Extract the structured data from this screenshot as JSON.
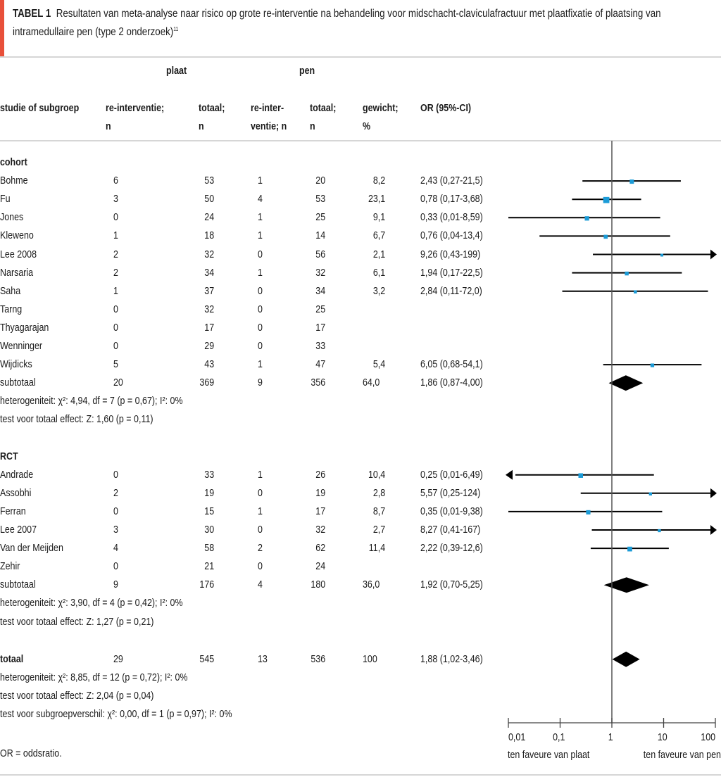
{
  "caption": {
    "label": "TABEL 1",
    "text": "Resultaten van meta-analyse naar risico op grote re-interventie na behandeling voor midschacht-claviculafractuur met plaatfixatie of plaatsing van intramedullaire pen (type 2 onderzoek)",
    "ref": "11"
  },
  "header": {
    "group_plaat": "plaat",
    "group_pen": "pen",
    "col_study": "studie of subgroep",
    "col_plaat_events_1": "re-interventie;",
    "col_plaat_events_2": "n",
    "col_plaat_total_1": "totaal;",
    "col_plaat_total_2": "n",
    "col_pen_events_1": "re-inter-",
    "col_pen_events_2": "ventie; n",
    "col_pen_total_1": "totaal;",
    "col_pen_total_2": "n",
    "col_weight_1": "gewicht;",
    "col_weight_2": "%",
    "col_or": "OR (95%-CI)"
  },
  "footnote": "OR = oddsratio.",
  "chart_data": {
    "type": "forest",
    "scale": "log",
    "xlim": [
      0.01,
      100
    ],
    "xticks": [
      0.01,
      0.1,
      1,
      10,
      100
    ],
    "xtick_labels": [
      "0,01",
      "0,1",
      "1",
      "10",
      "100"
    ],
    "reference_line": 1,
    "label_left": "ten faveure van plaat",
    "label_right": "ten faveure van pen",
    "marker_color": "#1b9bd7",
    "groups": [
      {
        "name": "cohort",
        "studies": [
          {
            "name": "Bohme",
            "plaat_events": "6",
            "plaat_total": "53",
            "pen_events": "1",
            "pen_total": "20",
            "weight": "8,2",
            "or_text": "2,43 (0,27-21,5)",
            "or": 2.43,
            "lo": 0.27,
            "hi": 21.5
          },
          {
            "name": "Fu",
            "plaat_events": "3",
            "plaat_total": "50",
            "pen_events": "4",
            "pen_total": "53",
            "weight": "23,1",
            "or_text": "0,78 (0,17-3,68)",
            "or": 0.78,
            "lo": 0.17,
            "hi": 3.68
          },
          {
            "name": "Jones",
            "plaat_events": "0",
            "plaat_total": "24",
            "pen_events": "1",
            "pen_total": "25",
            "weight": "9,1",
            "or_text": "0,33 (0,01-8,59)",
            "or": 0.33,
            "lo": 0.01,
            "hi": 8.59
          },
          {
            "name": "Kleweno",
            "plaat_events": "1",
            "plaat_total": "18",
            "pen_events": "1",
            "pen_total": "14",
            "weight": "6,7",
            "or_text": "0,76 (0,04-13,4)",
            "or": 0.76,
            "lo": 0.04,
            "hi": 13.4
          },
          {
            "name": "Lee 2008",
            "plaat_events": "2",
            "plaat_total": "32",
            "pen_events": "0",
            "pen_total": "56",
            "weight": "2,1",
            "or_text": "9,26 (0,43-199)",
            "or": 9.26,
            "lo": 0.43,
            "hi": 199
          },
          {
            "name": "Narsaria",
            "plaat_events": "2",
            "plaat_total": "34",
            "pen_events": "1",
            "pen_total": "32",
            "weight": "6,1",
            "or_text": "1,94 (0,17-22,5)",
            "or": 1.94,
            "lo": 0.17,
            "hi": 22.5
          },
          {
            "name": "Saha",
            "plaat_events": "1",
            "plaat_total": "37",
            "pen_events": "0",
            "pen_total": "34",
            "weight": "3,2",
            "or_text": "2,84 (0,11-72,0)",
            "or": 2.84,
            "lo": 0.11,
            "hi": 72.0
          },
          {
            "name": "Tarng",
            "plaat_events": "0",
            "plaat_total": "32",
            "pen_events": "0",
            "pen_total": "25",
            "weight": "",
            "or_text": "",
            "or": null,
            "lo": null,
            "hi": null
          },
          {
            "name": "Thyagarajan",
            "plaat_events": "0",
            "plaat_total": "17",
            "pen_events": "0",
            "pen_total": "17",
            "weight": "",
            "or_text": "",
            "or": null,
            "lo": null,
            "hi": null
          },
          {
            "name": "Wenninger",
            "plaat_events": "0",
            "plaat_total": "29",
            "pen_events": "0",
            "pen_total": "33",
            "weight": "",
            "or_text": "",
            "or": null,
            "lo": null,
            "hi": null
          },
          {
            "name": "Wijdicks",
            "plaat_events": "5",
            "plaat_total": "43",
            "pen_events": "1",
            "pen_total": "47",
            "weight": "5,4",
            "or_text": "6,05 (0,68-54,1)",
            "or": 6.05,
            "lo": 0.68,
            "hi": 54.1
          }
        ],
        "subtotal": {
          "name": "subtotaal",
          "plaat_events": "20",
          "plaat_total": "369",
          "pen_events": "9",
          "pen_total": "356",
          "weight": "64,0",
          "or_text": "1,86 (0,87-4,00)",
          "or": 1.86,
          "lo": 0.87,
          "hi": 4.0
        },
        "heterogeneity": "heterogeniteit: χ²: 4,94, df = 7 (p = 0,67); I²: 0%",
        "overall_effect": "test voor totaal effect: Z: 1,60 (p = 0,11)"
      },
      {
        "name": "RCT",
        "studies": [
          {
            "name": "Andrade",
            "plaat_events": "0",
            "plaat_total": "33",
            "pen_events": "1",
            "pen_total": "26",
            "weight": "10,4",
            "or_text": "0,25 (0,01-6,49)",
            "or": 0.25,
            "lo": 0.01,
            "hi": 6.49
          },
          {
            "name": "Assobhi",
            "plaat_events": "2",
            "plaat_total": "19",
            "pen_events": "0",
            "pen_total": "19",
            "weight": "2,8",
            "or_text": "5,57 (0,25-124)",
            "or": 5.57,
            "lo": 0.25,
            "hi": 124
          },
          {
            "name": "Ferran",
            "plaat_events": "0",
            "plaat_total": "15",
            "pen_events": "1",
            "pen_total": "17",
            "weight": "8,7",
            "or_text": "0,35 (0,01-9,38)",
            "or": 0.35,
            "lo": 0.01,
            "hi": 9.38
          },
          {
            "name": "Lee 2007",
            "plaat_events": "3",
            "plaat_total": "30",
            "pen_events": "0",
            "pen_total": "32",
            "weight": "2,7",
            "or_text": "8,27 (0,41-167)",
            "or": 8.27,
            "lo": 0.41,
            "hi": 167
          },
          {
            "name": "Van der Meijden",
            "plaat_events": "4",
            "plaat_total": "58",
            "pen_events": "2",
            "pen_total": "62",
            "weight": "11,4",
            "or_text": "2,22 (0,39-12,6)",
            "or": 2.22,
            "lo": 0.39,
            "hi": 12.6
          },
          {
            "name": "Zehir",
            "plaat_events": "0",
            "plaat_total": "21",
            "pen_events": "0",
            "pen_total": "24",
            "weight": "",
            "or_text": "",
            "or": null,
            "lo": null,
            "hi": null
          }
        ],
        "subtotal": {
          "name": "subtotaal",
          "plaat_events": "9",
          "plaat_total": "176",
          "pen_events": "4",
          "pen_total": "180",
          "weight": "36,0",
          "or_text": "1,92 (0,70-5,25)",
          "or": 1.92,
          "lo": 0.7,
          "hi": 5.25
        },
        "heterogeneity": "heterogeniteit: χ²: 3,90, df = 4 (p = 0,42); I²: 0%",
        "overall_effect": "test voor totaal effect: Z: 1,27 (p = 0,21)"
      }
    ],
    "total": {
      "name": "totaal",
      "plaat_events": "29",
      "plaat_total": "545",
      "pen_events": "13",
      "pen_total": "536",
      "weight": "100",
      "or_text": "1,88 (1,02-3,46)",
      "or": 1.88,
      "lo": 1.02,
      "hi": 3.46
    },
    "total_heterogeneity": "heterogeniteit: χ²: 8,85, df = 12 (p = 0,72); I²: 0%",
    "total_overall_effect": "test voor totaal effect: Z: 2,04 (p = 0,04)",
    "subgroup_difference": "test voor subgroepverschil: χ²: 0,00, df = 1 (p = 0,97); I²: 0%"
  }
}
